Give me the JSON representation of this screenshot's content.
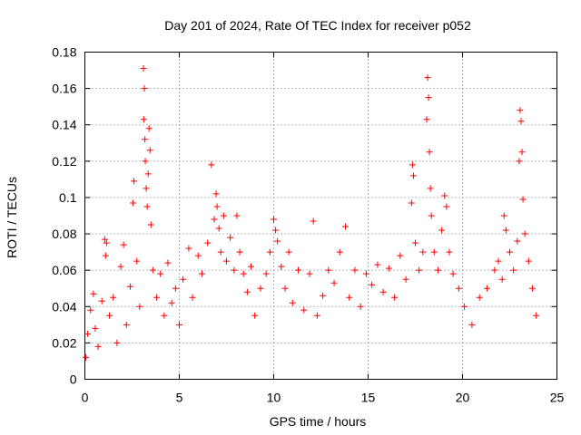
{
  "chart_data": {
    "type": "scatter",
    "title": "Day 201 of 2024, Rate Of TEC Index for receiver p052",
    "xlabel": "GPS time / hours",
    "ylabel": "ROTI / TECUs",
    "xlim": [
      0,
      25
    ],
    "ylim": [
      0,
      0.18
    ],
    "xticks": [
      0,
      5,
      10,
      15,
      20,
      25
    ],
    "xtick_labels": [
      "0",
      "5",
      "10",
      "15",
      "20",
      "25"
    ],
    "yticks": [
      0,
      0.02,
      0.04,
      0.06,
      0.08,
      0.1,
      0.12,
      0.14,
      0.16,
      0.18
    ],
    "ytick_labels": [
      "0",
      "0.02",
      "0.04",
      "0.06",
      "0.08",
      "0.1",
      "0.12",
      "0.14",
      "0.16",
      "0.18"
    ],
    "grid": true,
    "marker": "plus",
    "color": "#ff0000",
    "series": [
      {
        "name": "ROTI",
        "points": [
          [
            0.05,
            0.012
          ],
          [
            0.15,
            0.025
          ],
          [
            0.3,
            0.038
          ],
          [
            0.45,
            0.047
          ],
          [
            0.55,
            0.028
          ],
          [
            0.7,
            0.018
          ],
          [
            0.9,
            0.043
          ],
          [
            1.05,
            0.077
          ],
          [
            1.1,
            0.068
          ],
          [
            1.15,
            0.075
          ],
          [
            1.3,
            0.035
          ],
          [
            1.5,
            0.045
          ],
          [
            1.7,
            0.02
          ],
          [
            1.9,
            0.062
          ],
          [
            2.05,
            0.074
          ],
          [
            2.2,
            0.03
          ],
          [
            2.4,
            0.051
          ],
          [
            2.6,
            0.109
          ],
          [
            2.55,
            0.097
          ],
          [
            2.75,
            0.065
          ],
          [
            2.9,
            0.04
          ],
          [
            3.1,
            0.171
          ],
          [
            3.15,
            0.16
          ],
          [
            3.12,
            0.143
          ],
          [
            3.18,
            0.132
          ],
          [
            3.2,
            0.12
          ],
          [
            3.25,
            0.105
          ],
          [
            3.3,
            0.095
          ],
          [
            3.35,
            0.113
          ],
          [
            3.4,
            0.138
          ],
          [
            3.45,
            0.126
          ],
          [
            3.5,
            0.085
          ],
          [
            3.6,
            0.06
          ],
          [
            3.8,
            0.045
          ],
          [
            4.0,
            0.058
          ],
          [
            4.2,
            0.035
          ],
          [
            4.4,
            0.064
          ],
          [
            4.6,
            0.042
          ],
          [
            4.8,
            0.05
          ],
          [
            5.0,
            0.03
          ],
          [
            5.2,
            0.055
          ],
          [
            5.5,
            0.072
          ],
          [
            5.7,
            0.045
          ],
          [
            6.0,
            0.068
          ],
          [
            6.2,
            0.058
          ],
          [
            6.5,
            0.075
          ],
          [
            6.7,
            0.118
          ],
          [
            6.85,
            0.088
          ],
          [
            6.95,
            0.102
          ],
          [
            7.0,
            0.095
          ],
          [
            7.1,
            0.083
          ],
          [
            7.2,
            0.07
          ],
          [
            7.35,
            0.09
          ],
          [
            7.5,
            0.065
          ],
          [
            7.7,
            0.078
          ],
          [
            7.9,
            0.06
          ],
          [
            8.05,
            0.09
          ],
          [
            8.2,
            0.07
          ],
          [
            8.4,
            0.058
          ],
          [
            8.6,
            0.048
          ],
          [
            8.8,
            0.062
          ],
          [
            9.0,
            0.035
          ],
          [
            9.3,
            0.05
          ],
          [
            9.6,
            0.058
          ],
          [
            9.8,
            0.07
          ],
          [
            10.0,
            0.088
          ],
          [
            10.1,
            0.082
          ],
          [
            10.2,
            0.076
          ],
          [
            10.4,
            0.062
          ],
          [
            10.6,
            0.05
          ],
          [
            10.8,
            0.07
          ],
          [
            11.0,
            0.042
          ],
          [
            11.3,
            0.06
          ],
          [
            11.6,
            0.038
          ],
          [
            11.9,
            0.058
          ],
          [
            12.1,
            0.087
          ],
          [
            12.3,
            0.035
          ],
          [
            12.6,
            0.046
          ],
          [
            12.9,
            0.06
          ],
          [
            13.2,
            0.053
          ],
          [
            13.5,
            0.07
          ],
          [
            13.8,
            0.084
          ],
          [
            14.0,
            0.045
          ],
          [
            14.3,
            0.06
          ],
          [
            14.6,
            0.04
          ],
          [
            14.9,
            0.058
          ],
          [
            15.2,
            0.052
          ],
          [
            15.5,
            0.063
          ],
          [
            15.8,
            0.048
          ],
          [
            16.1,
            0.061
          ],
          [
            16.4,
            0.045
          ],
          [
            16.7,
            0.068
          ],
          [
            17.0,
            0.055
          ],
          [
            17.3,
            0.097
          ],
          [
            17.35,
            0.118
          ],
          [
            17.4,
            0.112
          ],
          [
            17.5,
            0.075
          ],
          [
            17.7,
            0.06
          ],
          [
            17.9,
            0.07
          ],
          [
            18.1,
            0.143
          ],
          [
            18.15,
            0.166
          ],
          [
            18.2,
            0.155
          ],
          [
            18.25,
            0.125
          ],
          [
            18.3,
            0.105
          ],
          [
            18.35,
            0.09
          ],
          [
            18.5,
            0.07
          ],
          [
            18.7,
            0.06
          ],
          [
            18.9,
            0.082
          ],
          [
            19.05,
            0.101
          ],
          [
            19.15,
            0.095
          ],
          [
            19.3,
            0.07
          ],
          [
            19.5,
            0.058
          ],
          [
            19.8,
            0.05
          ],
          [
            20.1,
            0.04
          ],
          [
            20.5,
            0.03
          ],
          [
            20.9,
            0.045
          ],
          [
            21.3,
            0.05
          ],
          [
            21.7,
            0.06
          ],
          [
            21.9,
            0.065
          ],
          [
            22.1,
            0.055
          ],
          [
            22.2,
            0.09
          ],
          [
            22.3,
            0.082
          ],
          [
            22.5,
            0.07
          ],
          [
            22.7,
            0.06
          ],
          [
            22.9,
            0.076
          ],
          [
            23.0,
            0.12
          ],
          [
            23.05,
            0.148
          ],
          [
            23.1,
            0.142
          ],
          [
            23.15,
            0.125
          ],
          [
            23.2,
            0.099
          ],
          [
            23.3,
            0.08
          ],
          [
            23.5,
            0.065
          ],
          [
            23.7,
            0.05
          ],
          [
            23.9,
            0.035
          ]
        ]
      }
    ]
  }
}
